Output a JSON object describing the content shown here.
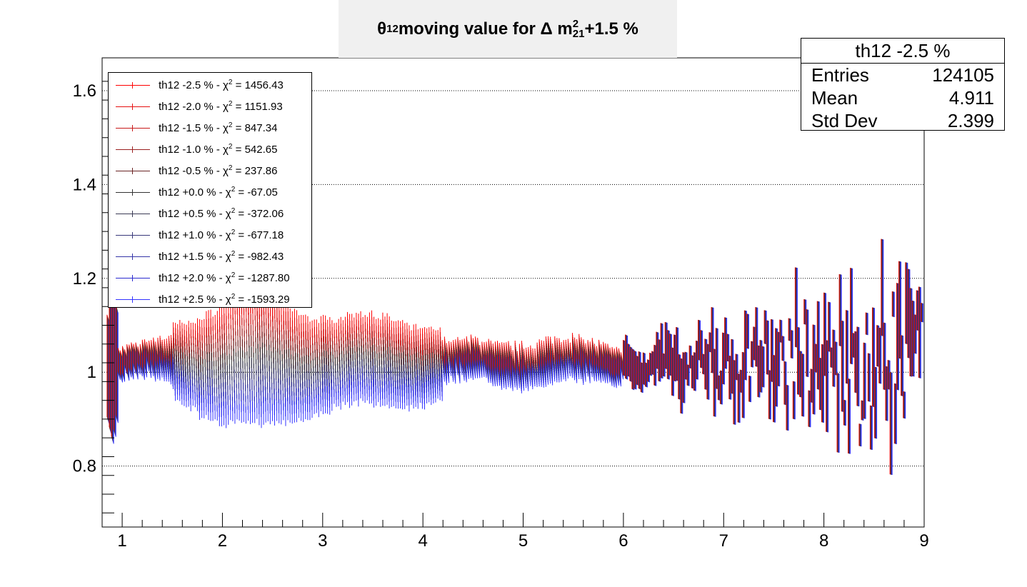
{
  "title": {
    "theta": "θ",
    "theta_sub": "12",
    "middle": " moving value for Δ m",
    "m_sup": "2",
    "m_sub": "21",
    "suffix": " +1.5 %"
  },
  "stats": {
    "header": "th12 -2.5 %",
    "rows": [
      {
        "label": "Entries",
        "value": "124105"
      },
      {
        "label": "Mean",
        "value": "4.911"
      },
      {
        "label": "Std Dev",
        "value": "2.399"
      }
    ]
  },
  "chart_data": {
    "type": "scatter",
    "xlim": [
      0.8,
      9.0
    ],
    "ylim": [
      0.67,
      1.67
    ],
    "x_ticks": [
      "1",
      "2",
      "3",
      "4",
      "5",
      "6",
      "7",
      "8",
      "9"
    ],
    "y_ticks": [
      "0.8",
      "1",
      "1.2",
      "1.4",
      "1.6"
    ],
    "y_tick_values": [
      0.8,
      1.0,
      1.2,
      1.4,
      1.6
    ],
    "grid_y": true,
    "legend_position": "top-left",
    "series": [
      {
        "name": "th12 -2.5 % - χ",
        "chi": " = 1456.43",
        "color": "#ff0000",
        "shift": -2.5
      },
      {
        "name": "th12 -2.0 % - χ",
        "chi": " = 1151.93",
        "color": "#e61010",
        "shift": -2.0
      },
      {
        "name": "th12 -1.5 % - χ",
        "chi": " = 847.34",
        "color": "#c81a1a",
        "shift": -1.5
      },
      {
        "name": "th12 -1.0 % - χ",
        "chi": " = 542.65",
        "color": "#9a2020",
        "shift": -1.0
      },
      {
        "name": "th12 -0.5 % - χ",
        "chi": " = 237.86",
        "color": "#6a2424",
        "shift": -0.5
      },
      {
        "name": "th12 +0.0 % - χ",
        "chi": " = -67.05",
        "color": "#333333",
        "shift": 0.0
      },
      {
        "name": "th12 +0.5 % - χ",
        "chi": " = -372.06",
        "color": "#3a3a55",
        "shift": 0.5
      },
      {
        "name": "th12 +1.0 % - χ",
        "chi": " = -677.18",
        "color": "#38387a",
        "shift": 1.0
      },
      {
        "name": "th12 +1.5 % - χ",
        "chi": " = -982.43",
        "color": "#3434a8",
        "shift": 1.5
      },
      {
        "name": "th12 +2.0 % - χ",
        "chi": " = -1287.80",
        "color": "#2a2ad0",
        "shift": 2.0
      },
      {
        "name": "th12 +2.5 % - χ",
        "chi": " = -1593.29",
        "color": "#3333ff",
        "shift": 2.5
      }
    ],
    "chi_sup": "2"
  }
}
